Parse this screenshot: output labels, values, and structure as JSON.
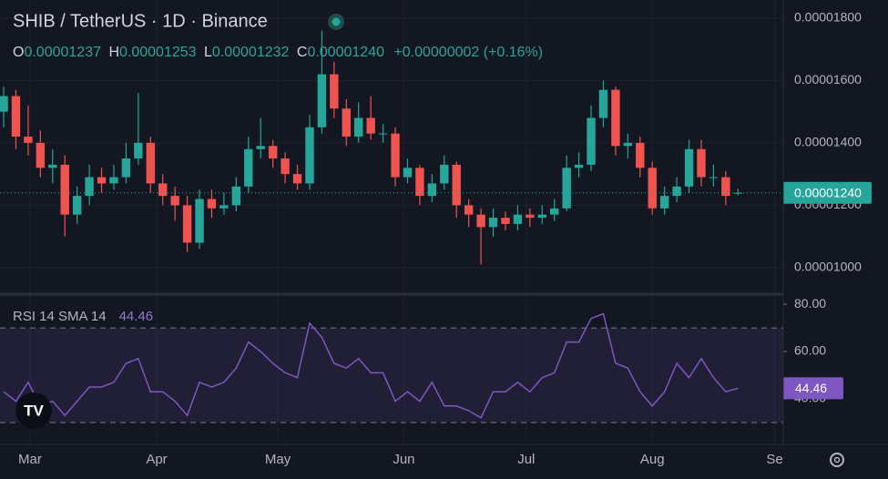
{
  "header": {
    "title": "SHIB / TetherUS · 1D · Binance",
    "ohlc": [
      {
        "key": "O",
        "value": "0.00001237"
      },
      {
        "key": "H",
        "value": "0.00001253"
      },
      {
        "key": "L",
        "value": "0.00001232"
      },
      {
        "key": "C",
        "value": "0.00001240"
      }
    ],
    "change": "+0.00000002 (+0.16%)"
  },
  "chart_data": [
    {
      "type": "candlestick",
      "up_color": "#26a69a",
      "down_color": "#ef5350",
      "ylim": [
        9.18e-06,
        1.858e-05
      ],
      "yticks": [
        {
          "value": 1.8e-05,
          "label": "0.00001800"
        },
        {
          "value": 1.6e-05,
          "label": "0.00001600"
        },
        {
          "value": 1.4e-05,
          "label": "0.00001400"
        },
        {
          "value": 1.2e-05,
          "label": "0.00001200"
        },
        {
          "value": 1e-05,
          "label": "0.00001000"
        }
      ],
      "xlim": [
        -0.3,
        63.7
      ],
      "xticks": [
        {
          "value": 2.15,
          "label": "Mar"
        },
        {
          "value": 12.5,
          "label": "Apr"
        },
        {
          "value": 22.4,
          "label": "May"
        },
        {
          "value": 32.7,
          "label": "Jun"
        },
        {
          "value": 42.7,
          "label": "Jul"
        },
        {
          "value": 53,
          "label": "Aug"
        },
        {
          "value": 63,
          "label": "Se"
        }
      ],
      "grid": true,
      "last_price": {
        "value": 1.24e-05,
        "label": "0.00001240"
      },
      "ohlc": [
        [
          1.5e-05,
          1.58e-05,
          1.45e-05,
          1.55e-05
        ],
        [
          1.55e-05,
          1.57e-05,
          1.38e-05,
          1.42e-05
        ],
        [
          1.42e-05,
          1.52e-05,
          1.36e-05,
          1.4e-05
        ],
        [
          1.4e-05,
          1.44e-05,
          1.29e-05,
          1.32e-05
        ],
        [
          1.32e-05,
          1.38e-05,
          1.27e-05,
          1.33e-05
        ],
        [
          1.33e-05,
          1.36e-05,
          1.1e-05,
          1.17e-05
        ],
        [
          1.17e-05,
          1.26e-05,
          1.14e-05,
          1.23e-05
        ],
        [
          1.23e-05,
          1.33e-05,
          1.2e-05,
          1.29e-05
        ],
        [
          1.29e-05,
          1.32e-05,
          1.24e-05,
          1.27e-05
        ],
        [
          1.27e-05,
          1.33e-05,
          1.25e-05,
          1.29e-05
        ],
        [
          1.29e-05,
          1.4e-05,
          1.27e-05,
          1.35e-05
        ],
        [
          1.35e-05,
          1.56e-05,
          1.33e-05,
          1.4e-05
        ],
        [
          1.4e-05,
          1.42e-05,
          1.24e-05,
          1.27e-05
        ],
        [
          1.27e-05,
          1.3e-05,
          1.2e-05,
          1.23e-05
        ],
        [
          1.23e-05,
          1.26e-05,
          1.15e-05,
          1.2e-05
        ],
        [
          1.2e-05,
          1.23e-05,
          1.05e-05,
          1.08e-05
        ],
        [
          1.08e-05,
          1.25e-05,
          1.06e-05,
          1.22e-05
        ],
        [
          1.22e-05,
          1.25e-05,
          1.16e-05,
          1.19e-05
        ],
        [
          1.19e-05,
          1.24e-05,
          1.17e-05,
          1.2e-05
        ],
        [
          1.2e-05,
          1.29e-05,
          1.18e-05,
          1.26e-05
        ],
        [
          1.26e-05,
          1.42e-05,
          1.24e-05,
          1.38e-05
        ],
        [
          1.38e-05,
          1.48e-05,
          1.35e-05,
          1.39e-05
        ],
        [
          1.39e-05,
          1.41e-05,
          1.32e-05,
          1.35e-05
        ],
        [
          1.35e-05,
          1.37e-05,
          1.27e-05,
          1.3e-05
        ],
        [
          1.3e-05,
          1.33e-05,
          1.25e-05,
          1.27e-05
        ],
        [
          1.27e-05,
          1.49e-05,
          1.25e-05,
          1.45e-05
        ],
        [
          1.45e-05,
          1.76e-05,
          1.43e-05,
          1.62e-05
        ],
        [
          1.62e-05,
          1.66e-05,
          1.48e-05,
          1.51e-05
        ],
        [
          1.51e-05,
          1.54e-05,
          1.39e-05,
          1.42e-05
        ],
        [
          1.42e-05,
          1.53e-05,
          1.4e-05,
          1.48e-05
        ],
        [
          1.48e-05,
          1.55e-05,
          1.41e-05,
          1.43e-05
        ],
        [
          1.43e-05,
          1.46e-05,
          1.4e-05,
          1.43e-05
        ],
        [
          1.43e-05,
          1.45e-05,
          1.26e-05,
          1.29e-05
        ],
        [
          1.29e-05,
          1.35e-05,
          1.27e-05,
          1.32e-05
        ],
        [
          1.32e-05,
          1.33e-05,
          1.2e-05,
          1.23e-05
        ],
        [
          1.23e-05,
          1.3e-05,
          1.21e-05,
          1.27e-05
        ],
        [
          1.27e-05,
          1.36e-05,
          1.25e-05,
          1.33e-05
        ],
        [
          1.33e-05,
          1.34e-05,
          1.16e-05,
          1.2e-05
        ],
        [
          1.2e-05,
          1.22e-05,
          1.13e-05,
          1.17e-05
        ],
        [
          1.17e-05,
          1.19e-05,
          1.01e-05,
          1.13e-05
        ],
        [
          1.13e-05,
          1.19e-05,
          1.1e-05,
          1.16e-05
        ],
        [
          1.16e-05,
          1.18e-05,
          1.12e-05,
          1.14e-05
        ],
        [
          1.14e-05,
          1.2e-05,
          1.12e-05,
          1.17e-05
        ],
        [
          1.17e-05,
          1.19e-05,
          1.13e-05,
          1.16e-05
        ],
        [
          1.16e-05,
          1.2e-05,
          1.14e-05,
          1.17e-05
        ],
        [
          1.17e-05,
          1.22e-05,
          1.15e-05,
          1.19e-05
        ],
        [
          1.19e-05,
          1.36e-05,
          1.18e-05,
          1.32e-05
        ],
        [
          1.32e-05,
          1.37e-05,
          1.29e-05,
          1.33e-05
        ],
        [
          1.33e-05,
          1.52e-05,
          1.31e-05,
          1.48e-05
        ],
        [
          1.48e-05,
          1.6e-05,
          1.45e-05,
          1.57e-05
        ],
        [
          1.57e-05,
          1.58e-05,
          1.36e-05,
          1.39e-05
        ],
        [
          1.39e-05,
          1.43e-05,
          1.35e-05,
          1.4e-05
        ],
        [
          1.4e-05,
          1.42e-05,
          1.29e-05,
          1.32e-05
        ],
        [
          1.32e-05,
          1.34e-05,
          1.17e-05,
          1.19e-05
        ],
        [
          1.19e-05,
          1.26e-05,
          1.17e-05,
          1.23e-05
        ],
        [
          1.23e-05,
          1.29e-05,
          1.21e-05,
          1.26e-05
        ],
        [
          1.26e-05,
          1.41e-05,
          1.24e-05,
          1.38e-05
        ],
        [
          1.38e-05,
          1.41e-05,
          1.26e-05,
          1.29e-05
        ],
        [
          1.29e-05,
          1.33e-05,
          1.26e-05,
          1.29e-05
        ],
        [
          1.29e-05,
          1.31e-05,
          1.2e-05,
          1.23e-05
        ],
        [
          1.237e-05,
          1.253e-05,
          1.232e-05,
          1.24e-05
        ]
      ]
    },
    {
      "type": "line",
      "title": "RSI 14 SMA 14",
      "color": "#7e57c2",
      "ylim": [
        21.9,
        83.5
      ],
      "yticks": [
        {
          "value": 80,
          "label": "80.00"
        },
        {
          "value": 60,
          "label": "60.00"
        },
        {
          "value": 40,
          "label": "40.00"
        }
      ],
      "bands": [
        70,
        30
      ],
      "band_color": "#7e57c2",
      "last_value": {
        "value": 44.46,
        "label": "44.46"
      },
      "values": [
        43,
        39,
        47,
        37,
        39,
        33,
        39,
        45,
        45,
        47,
        55,
        57,
        43,
        43,
        39,
        33,
        47,
        45,
        47,
        53,
        64,
        60,
        55,
        51,
        49,
        72,
        66,
        55,
        53,
        57,
        51,
        51,
        39,
        43,
        39,
        47,
        37,
        37,
        35,
        32,
        43,
        43,
        47,
        43,
        49,
        51,
        64,
        64,
        74,
        76,
        55,
        53,
        43,
        37,
        43,
        55,
        49,
        57,
        49,
        43,
        44.46
      ]
    }
  ]
}
